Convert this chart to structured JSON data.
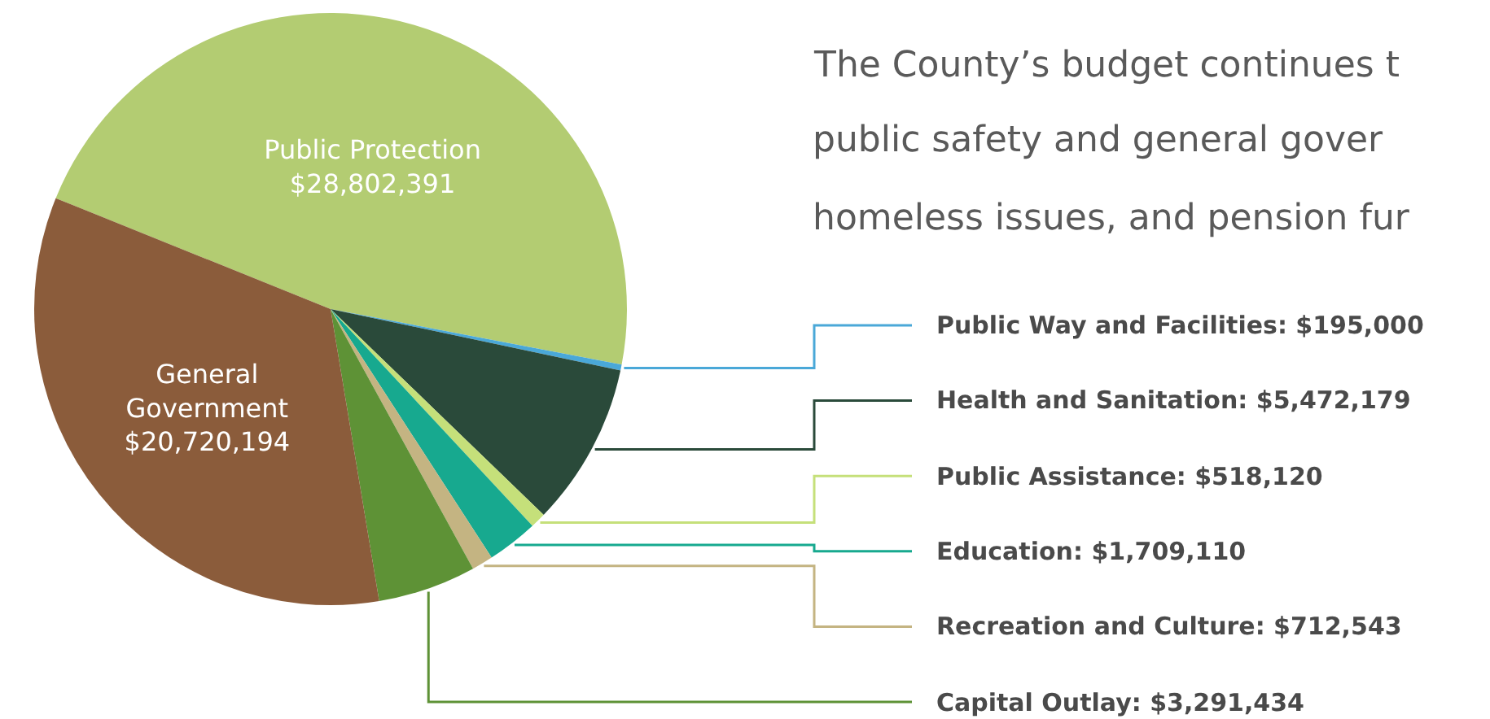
{
  "chart_data": {
    "type": "pie",
    "categories": [
      "Public Protection",
      "Public Way and Facilities",
      "Health and Sanitation",
      "Public Assistance",
      "Education",
      "Recreation and Culture",
      "Capital Outlay",
      "General Government"
    ],
    "values": [
      28802391,
      195000,
      5472179,
      518120,
      1709110,
      712543,
      3291434,
      20720194
    ],
    "value_labels": [
      "$28,802,391",
      "$195,000",
      "$5,472,179",
      "$518,120",
      "$1,709,110",
      "$712,543",
      "$3,291,434",
      "$20,720,194"
    ],
    "colors": [
      "#b3cc72",
      "#4aa8d8",
      "#2a4a3a",
      "#c5e07a",
      "#17a98f",
      "#c4b482",
      "#5e9236",
      "#8b5c3b"
    ],
    "annotations": [
      "The County’s budget continues t",
      "public safety and general gover",
      "homeless issues, and pension fur"
    ],
    "legend": false
  }
}
